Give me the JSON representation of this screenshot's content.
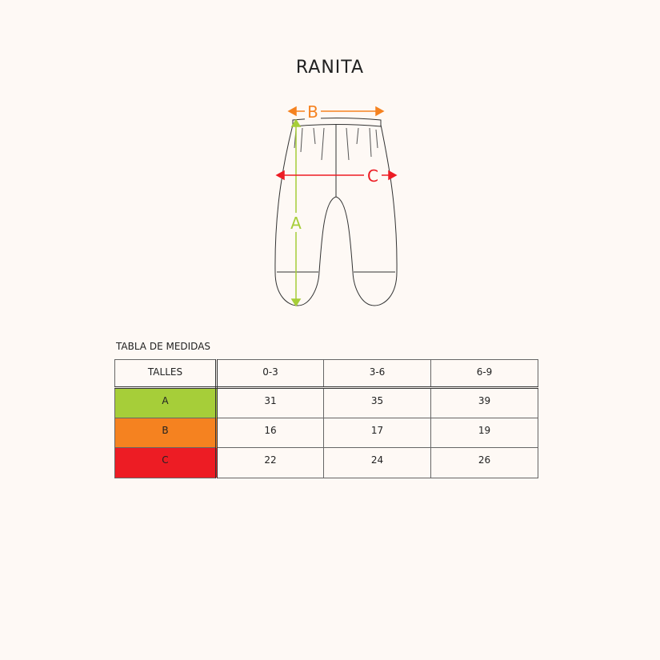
{
  "title": "RANITA",
  "diagram": {
    "labels": {
      "a": "A",
      "b": "B",
      "c": "C"
    },
    "colors": {
      "a": "#a6ce39",
      "b": "#f58220",
      "c": "#ed1c24",
      "outline": "#333333"
    }
  },
  "table": {
    "label": "TABLA DE MEDIDAS",
    "header": [
      "TALLES",
      "0-3",
      "3-6",
      "6-9"
    ],
    "rows": [
      {
        "name": "A",
        "color": "#a6ce39",
        "values": [
          "31",
          "35",
          "39"
        ]
      },
      {
        "name": "B",
        "color": "#f58220",
        "values": [
          "16",
          "17",
          "19"
        ]
      },
      {
        "name": "C",
        "color": "#ed1c24",
        "values": [
          "22",
          "24",
          "26"
        ]
      }
    ]
  }
}
